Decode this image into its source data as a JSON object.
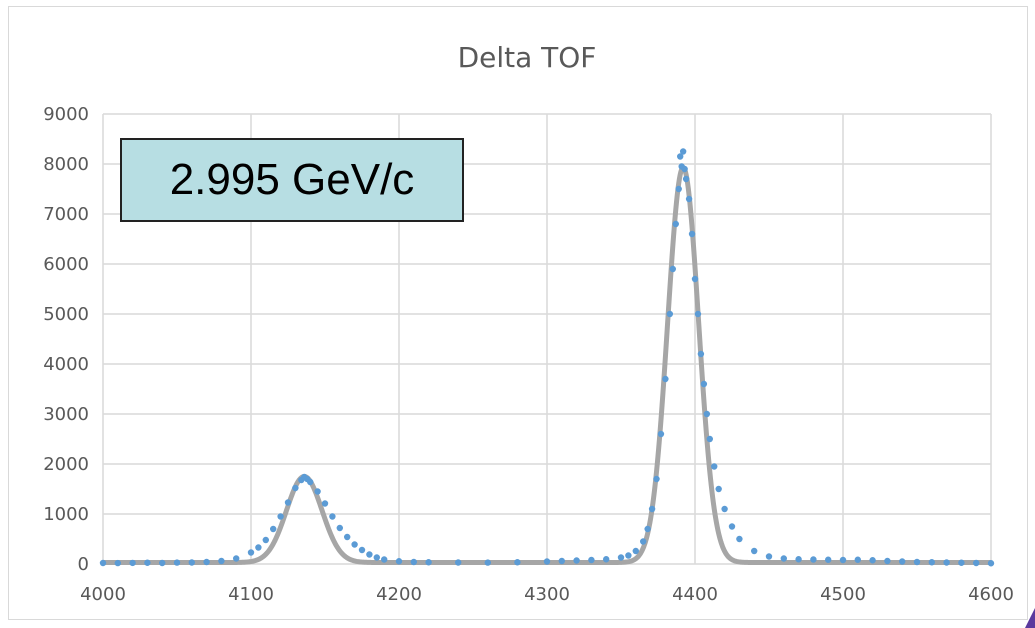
{
  "chart_data": {
    "type": "scatter",
    "title": "Delta TOF",
    "xlabel": "",
    "ylabel": "",
    "xlim": [
      4000,
      4600
    ],
    "ylim": [
      0,
      9000
    ],
    "x_ticks": [
      "4000",
      "4100",
      "4200",
      "4300",
      "4400",
      "4500",
      "4600"
    ],
    "y_ticks": [
      "0",
      "1000",
      "2000",
      "3000",
      "4000",
      "5000",
      "6000",
      "7000",
      "8000",
      "9000"
    ],
    "grid": true,
    "legend": "none",
    "annotation": "2.995 GeV/c",
    "series": [
      {
        "kind": "points",
        "color": "#5b9bd5",
        "peaks": [
          {
            "center": 4136,
            "amplitude": 1720,
            "sigma": 12
          },
          {
            "center": 4392,
            "amplitude": 7900,
            "sigma": 10.5
          }
        ],
        "baseline": 30,
        "points": [
          [
            4000,
            20
          ],
          [
            4010,
            18
          ],
          [
            4020,
            22
          ],
          [
            4030,
            25
          ],
          [
            4040,
            20
          ],
          [
            4050,
            28
          ],
          [
            4060,
            30
          ],
          [
            4070,
            40
          ],
          [
            4080,
            60
          ],
          [
            4090,
            110
          ],
          [
            4100,
            230
          ],
          [
            4105,
            330
          ],
          [
            4110,
            480
          ],
          [
            4115,
            700
          ],
          [
            4120,
            950
          ],
          [
            4125,
            1230
          ],
          [
            4130,
            1520
          ],
          [
            4134,
            1680
          ],
          [
            4136,
            1740
          ],
          [
            4138,
            1700
          ],
          [
            4140,
            1640
          ],
          [
            4145,
            1450
          ],
          [
            4150,
            1210
          ],
          [
            4155,
            950
          ],
          [
            4160,
            720
          ],
          [
            4165,
            540
          ],
          [
            4170,
            390
          ],
          [
            4175,
            280
          ],
          [
            4180,
            190
          ],
          [
            4185,
            130
          ],
          [
            4190,
            90
          ],
          [
            4200,
            55
          ],
          [
            4210,
            40
          ],
          [
            4220,
            35
          ],
          [
            4240,
            30
          ],
          [
            4260,
            28
          ],
          [
            4280,
            35
          ],
          [
            4300,
            50
          ],
          [
            4310,
            60
          ],
          [
            4320,
            70
          ],
          [
            4330,
            80
          ],
          [
            4340,
            95
          ],
          [
            4350,
            130
          ],
          [
            4355,
            170
          ],
          [
            4360,
            260
          ],
          [
            4365,
            450
          ],
          [
            4368,
            700
          ],
          [
            4371,
            1100
          ],
          [
            4374,
            1700
          ],
          [
            4377,
            2600
          ],
          [
            4380,
            3700
          ],
          [
            4383,
            5000
          ],
          [
            4385,
            5900
          ],
          [
            4387,
            6800
          ],
          [
            4389,
            7500
          ],
          [
            4390,
            8150
          ],
          [
            4391,
            7950
          ],
          [
            4392,
            8250
          ],
          [
            4393,
            7900
          ],
          [
            4394,
            7700
          ],
          [
            4396,
            7300
          ],
          [
            4398,
            6600
          ],
          [
            4400,
            5700
          ],
          [
            4402,
            5000
          ],
          [
            4404,
            4200
          ],
          [
            4406,
            3600
          ],
          [
            4408,
            3000
          ],
          [
            4410,
            2500
          ],
          [
            4413,
            1950
          ],
          [
            4416,
            1500
          ],
          [
            4420,
            1100
          ],
          [
            4425,
            750
          ],
          [
            4430,
            500
          ],
          [
            4440,
            260
          ],
          [
            4450,
            150
          ],
          [
            4460,
            110
          ],
          [
            4470,
            95
          ],
          [
            4480,
            90
          ],
          [
            4490,
            85
          ],
          [
            4500,
            80
          ],
          [
            4510,
            85
          ],
          [
            4520,
            75
          ],
          [
            4530,
            60
          ],
          [
            4540,
            50
          ],
          [
            4550,
            40
          ],
          [
            4560,
            35
          ],
          [
            4570,
            30
          ],
          [
            4580,
            25
          ],
          [
            4590,
            20
          ],
          [
            4600,
            15
          ]
        ]
      },
      {
        "kind": "fit",
        "color": "#a6a6a6"
      }
    ]
  },
  "colors": {
    "grid": "#d9d9d9",
    "axis_text": "#595959",
    "box_fill": "#b7dee3",
    "corner_accent": "#5b3a9e"
  }
}
